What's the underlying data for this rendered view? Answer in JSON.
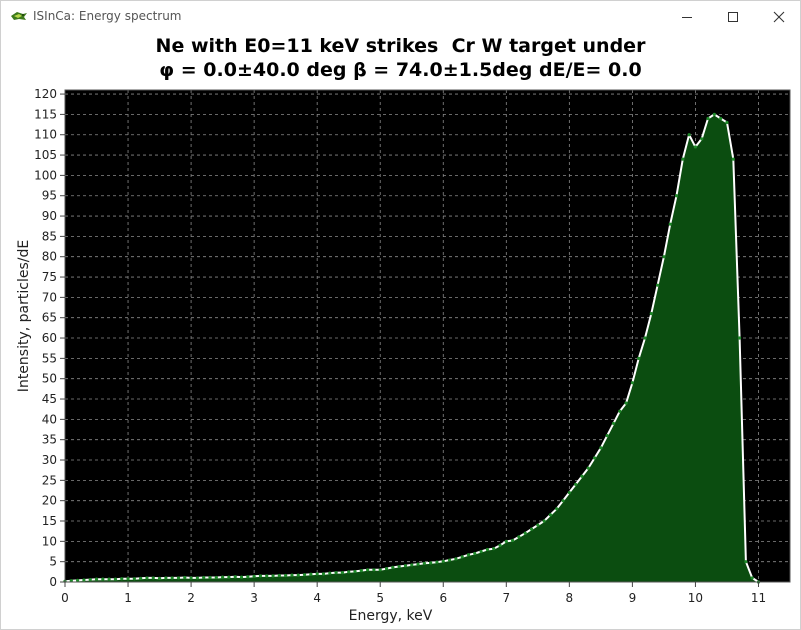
{
  "window": {
    "title": "ISInCa: Energy spectrum",
    "minimize_icon": "minimize-icon",
    "maximize_icon": "maximize-icon",
    "close_icon": "close-icon"
  },
  "colors": {
    "plot_background": "#000000",
    "fill": "#0b4d10",
    "line": "#ffffff",
    "grid": "#8a8a8a"
  },
  "chart_data": {
    "type": "area",
    "title": "Ne with E0=11 keV strikes  Cr W target under",
    "subtitle": "φ = 0.0±40.0 deg β = 74.0±1.5deg dE/E= 0.0",
    "xlabel": "Energy, keV",
    "ylabel": "Intensity, particles/dE",
    "xlim": [
      0,
      11.5
    ],
    "ylim": [
      0,
      121
    ],
    "xticks": [
      0,
      1,
      2,
      3,
      4,
      5,
      6,
      7,
      8,
      9,
      10,
      11
    ],
    "yticks": [
      0,
      5,
      10,
      15,
      20,
      25,
      30,
      35,
      40,
      45,
      50,
      55,
      60,
      65,
      70,
      75,
      80,
      85,
      90,
      95,
      100,
      105,
      110,
      115,
      120
    ],
    "grid": true,
    "x": [
      0.0,
      0.1,
      0.2,
      0.3,
      0.4,
      0.5,
      0.6,
      0.7,
      0.8,
      0.9,
      1.0,
      1.1,
      1.2,
      1.3,
      1.4,
      1.5,
      1.6,
      1.7,
      1.8,
      1.9,
      2.0,
      2.1,
      2.2,
      2.3,
      2.4,
      2.5,
      2.6,
      2.7,
      2.8,
      2.9,
      3.0,
      3.1,
      3.2,
      3.3,
      3.4,
      3.5,
      3.6,
      3.7,
      3.8,
      3.9,
      4.0,
      4.1,
      4.2,
      4.3,
      4.4,
      4.5,
      4.6,
      4.7,
      4.8,
      4.9,
      5.0,
      5.1,
      5.2,
      5.3,
      5.4,
      5.5,
      5.6,
      5.7,
      5.8,
      5.9,
      6.0,
      6.1,
      6.2,
      6.3,
      6.4,
      6.5,
      6.6,
      6.7,
      6.8,
      6.9,
      7.0,
      7.1,
      7.2,
      7.3,
      7.4,
      7.5,
      7.6,
      7.7,
      7.8,
      7.9,
      8.0,
      8.1,
      8.2,
      8.3,
      8.4,
      8.5,
      8.6,
      8.7,
      8.8,
      8.9,
      9.0,
      9.1,
      9.2,
      9.3,
      9.4,
      9.5,
      9.6,
      9.7,
      9.8,
      9.9,
      10.0,
      10.1,
      10.2,
      10.3,
      10.4,
      10.5,
      10.6,
      10.7,
      10.8,
      10.9,
      11.0
    ],
    "values": [
      0.2,
      0.3,
      0.4,
      0.5,
      0.6,
      0.7,
      0.7,
      0.7,
      0.7,
      0.8,
      0.8,
      0.8,
      0.9,
      1.0,
      1.0,
      0.9,
      1.0,
      1.0,
      1.0,
      1.1,
      1.0,
      1.0,
      1.1,
      1.1,
      1.1,
      1.2,
      1.2,
      1.3,
      1.2,
      1.3,
      1.4,
      1.5,
      1.5,
      1.5,
      1.6,
      1.6,
      1.7,
      1.7,
      1.8,
      1.9,
      2.0,
      2.0,
      2.2,
      2.3,
      2.3,
      2.5,
      2.6,
      2.8,
      3.0,
      3.0,
      3.0,
      3.3,
      3.6,
      3.8,
      4.0,
      4.2,
      4.4,
      4.6,
      4.7,
      4.9,
      5.1,
      5.4,
      5.7,
      6.2,
      6.7,
      7.0,
      7.5,
      8.0,
      8.2,
      9.0,
      10.0,
      10.2,
      11.1,
      12.0,
      13.0,
      14.0,
      15.0,
      16.5,
      18.0,
      20.0,
      22.0,
      24.0,
      26.0,
      28.0,
      30.5,
      33.0,
      36.0,
      39.0,
      42.0,
      44.0,
      49.0,
      55.0,
      60.0,
      66.0,
      73.0,
      80.0,
      88.0,
      95.0,
      104.0,
      110.0,
      107.0,
      109.0,
      114.0,
      115.0,
      114.0,
      113.0,
      104.0,
      60.0,
      5.0,
      1.0,
      0.0
    ]
  }
}
